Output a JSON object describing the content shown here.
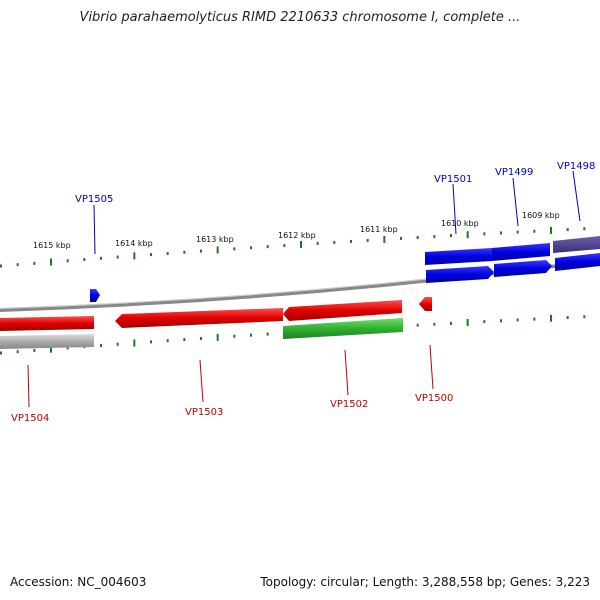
{
  "title": "Vibrio parahaemolyticus RIMD 2210633 chromosome I, complete ...",
  "footer": {
    "accession": "Accession: NC_004603",
    "summary": "Topology: circular; Length: 3,288,558 bp; Genes: 3,223"
  },
  "colors": {
    "forward_gene": "#0000e0",
    "reverse_gene": "#e00000",
    "rna_gene": "#30b030",
    "backbone": "#888888",
    "ticks": "#1a7a1a",
    "pseudo_gene": "#4a3f8a"
  },
  "kbp_ticks": [
    "1615 kbp",
    "1614 kbp",
    "1613 kbp",
    "1612 kbp",
    "1611 kbp",
    "1610 kbp",
    "1609 kbp"
  ],
  "genes_forward": [
    {
      "id": "g1505",
      "label": "VP1505"
    },
    {
      "id": "g1501",
      "label": "VP1501"
    },
    {
      "id": "g1499",
      "label": "VP1499"
    },
    {
      "id": "g1498",
      "label": "VP1498"
    }
  ],
  "genes_reverse": [
    {
      "id": "g1504",
      "label": "VP1504"
    },
    {
      "id": "g1503",
      "label": "VP1503"
    },
    {
      "id": "g1502",
      "label": "VP1502"
    },
    {
      "id": "g1500",
      "label": "VP1500"
    }
  ]
}
